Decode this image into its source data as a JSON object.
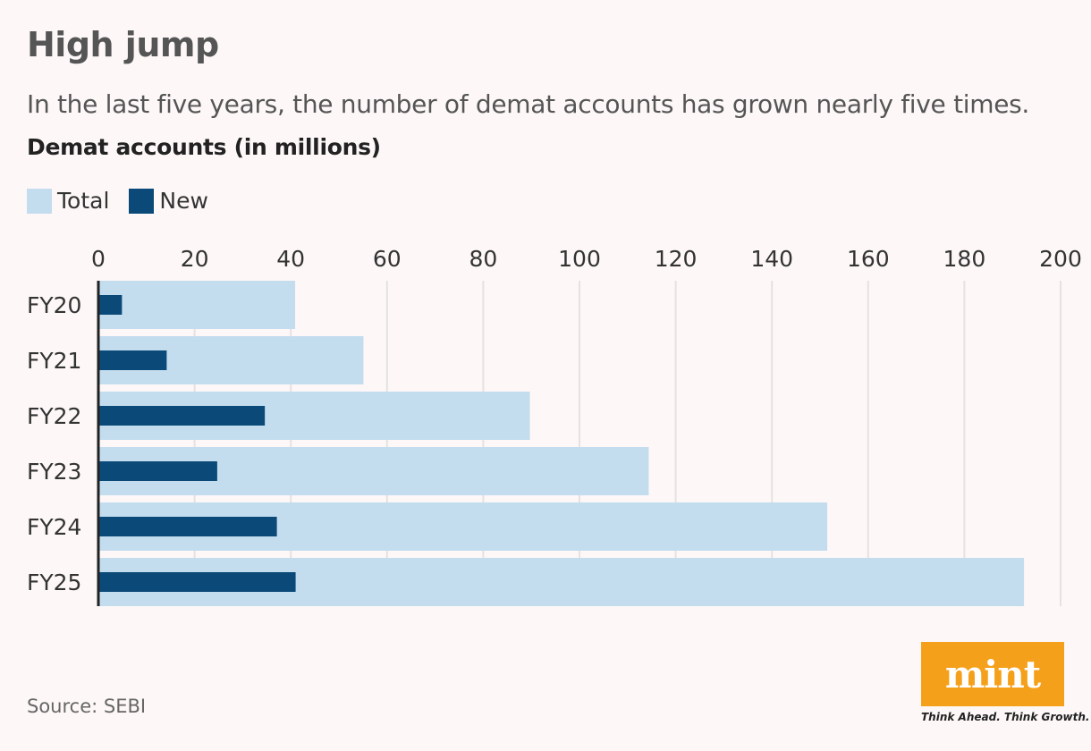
{
  "header": {
    "title": "High jump",
    "subtitle": "In the last five years, the number of demat accounts has grown nearly five times.",
    "ylabel": "Demat accounts (in millions)"
  },
  "footer": {
    "source": "Source: SEBI",
    "logo_text": "mint",
    "tagline": "Think Ahead. Think Growth."
  },
  "colors": {
    "total": "#c3ddef",
    "new": "#0b4a78",
    "grid": "#e6e2e1",
    "axis": "#222222",
    "logo": "#f5a01a"
  },
  "chart_data": {
    "type": "bar",
    "orientation": "horizontal",
    "title": "Demat accounts (in millions)",
    "categories": [
      "FY20",
      "FY21",
      "FY22",
      "FY23",
      "FY24",
      "FY25"
    ],
    "series": [
      {
        "name": "Total",
        "values": [
          40.9,
          55.1,
          89.7,
          114.4,
          151.5,
          192.4
        ]
      },
      {
        "name": "New",
        "values": [
          4.9,
          14.2,
          34.6,
          24.7,
          37.1,
          41.0
        ]
      }
    ],
    "xlim": [
      0,
      200
    ],
    "xticks": [
      "0",
      "20",
      "40",
      "60",
      "80",
      "100",
      "120",
      "140",
      "160",
      "180",
      "200"
    ],
    "grid": true,
    "legend": "top-left"
  }
}
